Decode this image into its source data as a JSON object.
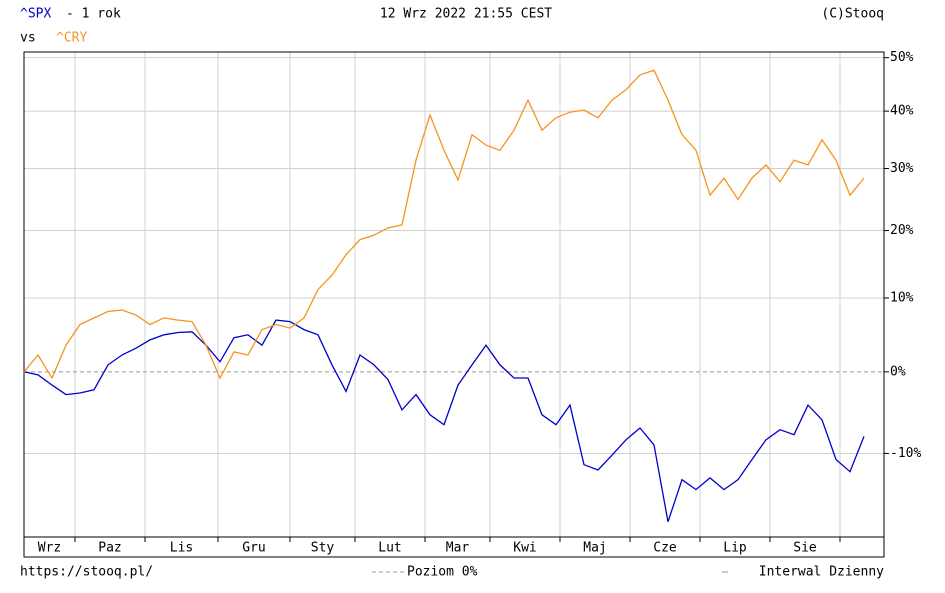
{
  "chart_data": {
    "type": "line",
    "period": "- 1 rok",
    "vs": "vs",
    "timestamp": "12 Wrz 2022 21:55 CEST",
    "copyright": "(C)Stooq",
    "source_url": "https://stooq.pl/",
    "zero_line_label": "Poziom 0%",
    "interval_label": "Interwal Dzienny",
    "x_labels": [
      "Wrz",
      "Paz",
      "Lis",
      "Gru",
      "Sty",
      "Lut",
      "Mar",
      "Kwi",
      "Maj",
      "Cze",
      "Lip",
      "Sie"
    ],
    "yscale": "log",
    "grid": true,
    "ylim": [
      -19.2,
      51.1
    ],
    "yticks": [
      {
        "value": 50,
        "label": "50%"
      },
      {
        "value": 40,
        "label": "40%"
      },
      {
        "value": 30,
        "label": "30%"
      },
      {
        "value": 20,
        "label": "20%"
      },
      {
        "value": 10,
        "label": "10%"
      },
      {
        "value": 0,
        "label": "0%"
      },
      {
        "value": -10,
        "label": "-10%"
      }
    ],
    "series": [
      {
        "name": "^SPX",
        "color": "#0000cc",
        "values": [
          0,
          -0.4,
          -1.7,
          -2.9,
          -2.7,
          -2.3,
          0.9,
          2.2,
          3.1,
          4.2,
          4.9,
          5.2,
          5.3,
          3.5,
          1.3,
          4.5,
          4.9,
          3.5,
          6.9,
          6.7,
          5.6,
          4.9,
          0.9,
          -2.5,
          2.2,
          0.9,
          -1.0,
          -4.8,
          -2.9,
          -5.4,
          -6.6,
          -1.7,
          0.9,
          3.5,
          0.9,
          -0.8,
          -0.8,
          -5.4,
          -6.6,
          -4.2,
          -11.3,
          -11.9,
          -10.2,
          -8.4,
          -7.0,
          -9.0,
          -17.6,
          -13.0,
          -14.1,
          -12.8,
          -14.1,
          -13.0,
          -10.7,
          -8.4,
          -7.2,
          -7.8,
          -4.2,
          -6.0,
          -10.7,
          -12.1,
          -8.0
        ]
      },
      {
        "name": "^CRY",
        "color": "#f7941d",
        "values": [
          0,
          2.2,
          -0.8,
          3.5,
          6.3,
          7.2,
          8.1,
          8.3,
          7.6,
          6.3,
          7.2,
          6.9,
          6.7,
          3.5,
          -0.8,
          2.6,
          2.2,
          5.6,
          6.3,
          5.8,
          7.2,
          11.2,
          13.3,
          16.3,
          18.6,
          19.3,
          20.4,
          20.9,
          31.4,
          39.3,
          33.1,
          28.1,
          35.8,
          34.0,
          33.1,
          36.6,
          42.0,
          36.6,
          38.8,
          39.8,
          40.2,
          38.8,
          42.0,
          43.9,
          46.7,
          47.6,
          42.0,
          35.8,
          33.1,
          25.6,
          28.4,
          24.9,
          28.4,
          30.6,
          27.8,
          31.4,
          30.6,
          34.9,
          31.4,
          25.6,
          28.4
        ]
      }
    ]
  }
}
